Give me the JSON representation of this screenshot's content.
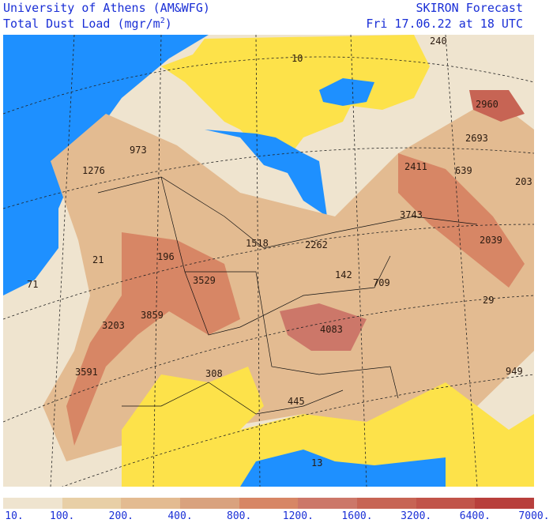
{
  "header": {
    "org": "University of Athens (AM&WFG)",
    "product_prefix": "Total Dust Load (mgr/m",
    "product_sup": "2",
    "product_suffix": ")",
    "forecast_name": "SKIRON Forecast",
    "valid_time": "Fri 17.06.22 at 18 UTC"
  },
  "map": {
    "sea_color": "#1e90ff",
    "land_low_color": "#fde24a",
    "labels": [
      {
        "id": "240",
        "text": "240"
      },
      {
        "id": "10",
        "text": "10"
      },
      {
        "id": "2960",
        "text": "2960"
      },
      {
        "id": "973",
        "text": "973"
      },
      {
        "id": "2693",
        "text": "2693"
      },
      {
        "id": "1276",
        "text": "1276"
      },
      {
        "id": "2411",
        "text": "2411"
      },
      {
        "id": "639",
        "text": "639"
      },
      {
        "id": "203",
        "text": "203"
      },
      {
        "id": "3743",
        "text": "3743"
      },
      {
        "id": "1518",
        "text": "1518"
      },
      {
        "id": "2262",
        "text": "2262"
      },
      {
        "id": "2039",
        "text": "2039"
      },
      {
        "id": "21",
        "text": "21"
      },
      {
        "id": "196",
        "text": "196"
      },
      {
        "id": "71",
        "text": "71"
      },
      {
        "id": "3529",
        "text": "3529"
      },
      {
        "id": "142",
        "text": "142"
      },
      {
        "id": "709",
        "text": "709"
      },
      {
        "id": "29",
        "text": "29"
      },
      {
        "id": "3859",
        "text": "3859"
      },
      {
        "id": "3203",
        "text": "3203"
      },
      {
        "id": "4083",
        "text": "4083"
      },
      {
        "id": "3591",
        "text": "3591"
      },
      {
        "id": "308",
        "text": "308"
      },
      {
        "id": "949",
        "text": "949"
      },
      {
        "id": "445",
        "text": "445"
      },
      {
        "id": "13",
        "text": "13"
      }
    ]
  },
  "legend": {
    "colors": [
      "#efe4cf",
      "#e8cfa6",
      "#e3bb91",
      "#d9a27e",
      "#d78665",
      "#cc7769",
      "#c76454",
      "#c1544a",
      "#b83f3c"
    ],
    "ticks": [
      "10.",
      "100.",
      "200.",
      "400.",
      "800.",
      "1200.",
      "1600.",
      "3200.",
      "6400.",
      "7000."
    ]
  }
}
